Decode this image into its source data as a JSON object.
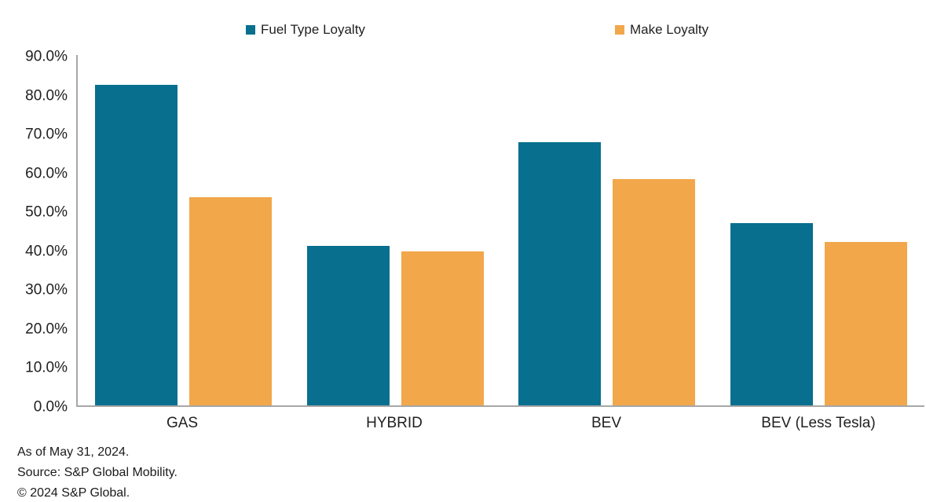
{
  "legend": [
    {
      "label": "Fuel Type Loyalty",
      "color": "#086F8E"
    },
    {
      "label": "Make Loyalty",
      "color": "#F2A74B"
    }
  ],
  "chart_data": {
    "type": "bar",
    "categories": [
      "GAS",
      "HYBRID",
      "BEV",
      "BEV (Less Tesla)"
    ],
    "series": [
      {
        "name": "Fuel Type Loyalty",
        "color": "#086F8E",
        "values": [
          82.4,
          40.9,
          67.7,
          46.8
        ]
      },
      {
        "name": "Make Loyalty",
        "color": "#F2A74B",
        "values": [
          53.4,
          39.6,
          58.1,
          41.9
        ]
      }
    ],
    "title": "",
    "xlabel": "",
    "ylabel": "",
    "ylim": [
      0,
      90
    ],
    "ytick_step": 10,
    "ytick_labels": [
      "0.0%",
      "10.0%",
      "20.0%",
      "30.0%",
      "40.0%",
      "50.0%",
      "60.0%",
      "70.0%",
      "80.0%",
      "90.0%"
    ],
    "grid": false,
    "legend_position": "top",
    "axis_color": "#A7A7A7"
  },
  "footer": {
    "lines": [
      "As of May 31, 2024.",
      "Source: S&P Global Mobility.",
      "© 2024 S&P Global."
    ]
  }
}
